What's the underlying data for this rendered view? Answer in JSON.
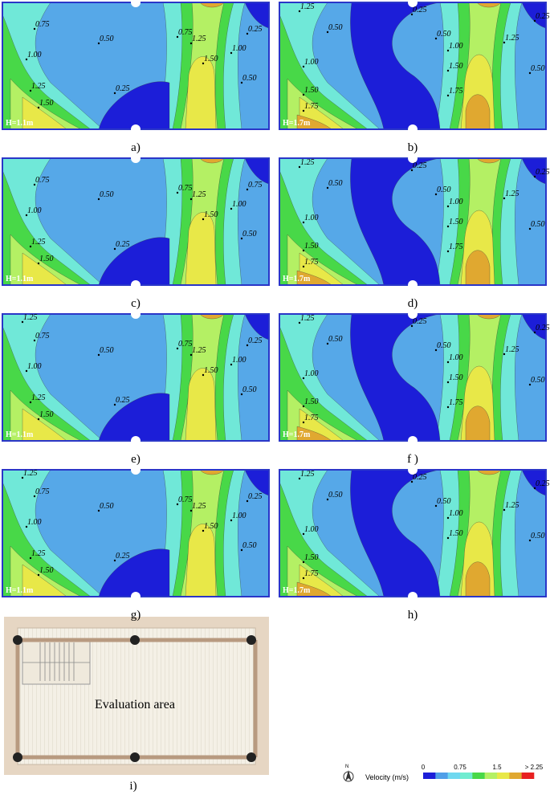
{
  "panels": [
    {
      "label": "a)",
      "height": "H=1.1m",
      "contours": [
        "0.75",
        "0.50",
        "0.75",
        "1.25",
        "1.00",
        "0.25",
        "1.50",
        "0.50",
        "1.00",
        "0.25",
        "1.25",
        "1.50"
      ]
    },
    {
      "label": "b)",
      "height": "H=1.7m",
      "contours": [
        "1.25",
        "0.25",
        "0.50",
        "0.50",
        "1.00",
        "1.25",
        "0.25",
        "1.00",
        "1.50",
        "0.50",
        "1.50",
        "1.75",
        "1.75"
      ]
    },
    {
      "label": "c)",
      "height": "H=1.1m",
      "contours": [
        "0.75",
        "0.50",
        "0.75",
        "1.25",
        "1.00",
        "0.75",
        "1.50",
        "0.50",
        "1.00",
        "0.25",
        "1.25",
        "1.50"
      ]
    },
    {
      "label": "d)",
      "height": "H=1.7m",
      "contours": [
        "1.25",
        "0.25",
        "0.50",
        "0.50",
        "1.00",
        "1.25",
        "0.25",
        "1.00",
        "1.50",
        "0.50",
        "1.50",
        "1.75",
        "1.75"
      ]
    },
    {
      "label": "e)",
      "height": "H=1.1m",
      "contours": [
        "0.75",
        "0.50",
        "0.75",
        "1.25",
        "1.00",
        "0.25",
        "1.50",
        "0.50",
        "1.00",
        "0.25",
        "1.25",
        "1.50",
        "1.25"
      ]
    },
    {
      "label": "f )",
      "height": "H=1.7m",
      "contours": [
        "1.25",
        "0.25",
        "0.50",
        "0.50",
        "1.00",
        "1.25",
        "0.25",
        "1.00",
        "1.50",
        "0.50",
        "1.50",
        "1.75",
        "1.75"
      ]
    },
    {
      "label": "g)",
      "height": "H=1.1m",
      "contours": [
        "0.75",
        "0.50",
        "0.75",
        "1.25",
        "1.00",
        "0.25",
        "1.50",
        "0.50",
        "1.00",
        "0.25",
        "1.25",
        "1.50",
        "1.25"
      ]
    },
    {
      "label": "h)",
      "height": "H=1.7m",
      "contours": [
        "1.25",
        "0.25",
        "0.50",
        "0.50",
        "1.00",
        "1.25",
        "0.25",
        "1.00",
        "1.50",
        "0.50",
        "1.50",
        "1.75"
      ]
    }
  ],
  "plan": {
    "label": "i)",
    "text": "Evaluation area"
  },
  "legend": {
    "title": "Velocity (m/s)",
    "north": "N",
    "ticks": [
      "0",
      "0.75",
      "1.5",
      "> 2.25"
    ],
    "colors": [
      "#1c1ed8",
      "#4f9fe8",
      "#6fd8f0",
      "#70ecd0",
      "#48d848",
      "#b4f064",
      "#e8e848",
      "#e0a830",
      "#e82020"
    ]
  }
}
